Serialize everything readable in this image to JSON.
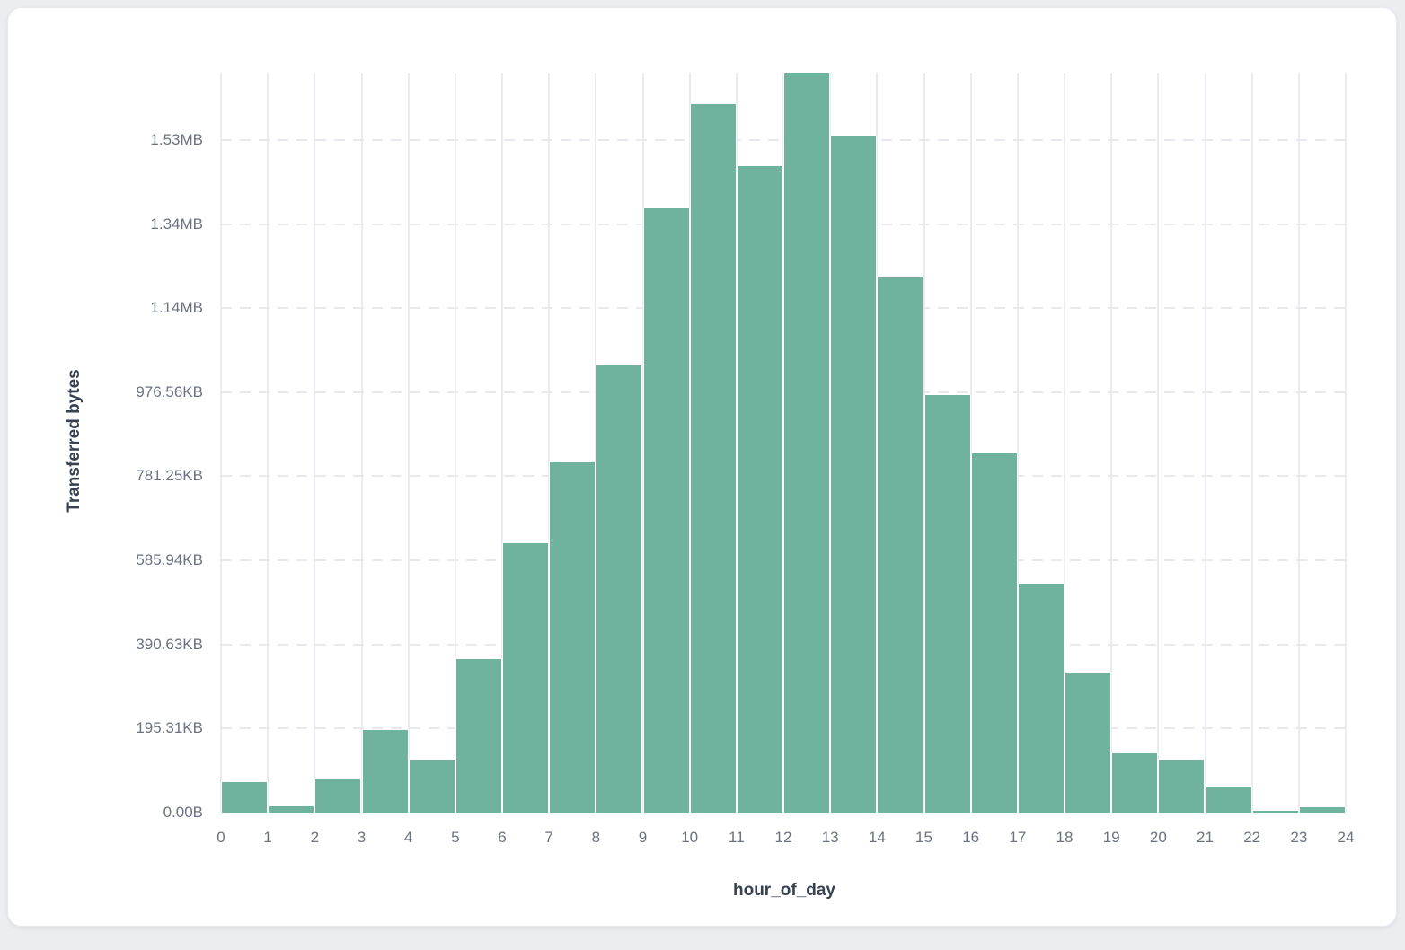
{
  "chart_data": {
    "type": "bar",
    "title": "",
    "xlabel": "hour_of_day",
    "ylabel": "Transferred bytes",
    "categories": [
      0,
      1,
      2,
      3,
      4,
      5,
      6,
      7,
      8,
      9,
      10,
      11,
      12,
      13,
      14,
      15,
      16,
      17,
      18,
      19,
      20,
      21,
      22,
      23
    ],
    "values_bytes": [
      72000,
      16000,
      79000,
      196000,
      125000,
      365000,
      640000,
      836000,
      1064000,
      1438000,
      1685000,
      1538000,
      1760000,
      1609000,
      1276000,
      994000,
      854000,
      544000,
      333000,
      141000,
      125000,
      59000,
      5000,
      12000
    ],
    "xlim": [
      0,
      24
    ],
    "ylim_bytes": [
      0,
      1760000
    ],
    "x_tick_labels": [
      "0",
      "1",
      "2",
      "3",
      "4",
      "5",
      "6",
      "7",
      "8",
      "9",
      "10",
      "11",
      "12",
      "13",
      "14",
      "15",
      "16",
      "17",
      "18",
      "19",
      "20",
      "21",
      "22",
      "23",
      "24"
    ],
    "y_ticks": [
      {
        "bytes": 0,
        "label": "0.00B"
      },
      {
        "bytes": 200000,
        "label": "195.31KB"
      },
      {
        "bytes": 400000,
        "label": "390.63KB"
      },
      {
        "bytes": 600000,
        "label": "585.94KB"
      },
      {
        "bytes": 800000,
        "label": "781.25KB"
      },
      {
        "bytes": 1000000,
        "label": "976.56KB"
      },
      {
        "bytes": 1200000,
        "label": "1.14MB"
      },
      {
        "bytes": 1400000,
        "label": "1.34MB"
      },
      {
        "bytes": 1600000,
        "label": "1.53MB"
      }
    ],
    "legend_position": "none",
    "grid": {
      "vertical": "solid",
      "horizontal": "dashed"
    },
    "colors": {
      "bar": "#6fb29e",
      "bar_edge": "#ffffff",
      "grid_line": "#e9ebf0",
      "tick_label": "#6b7280",
      "axis_title": "#374151",
      "card_background": "#ffffff",
      "page_background": "#ebedf0"
    }
  }
}
